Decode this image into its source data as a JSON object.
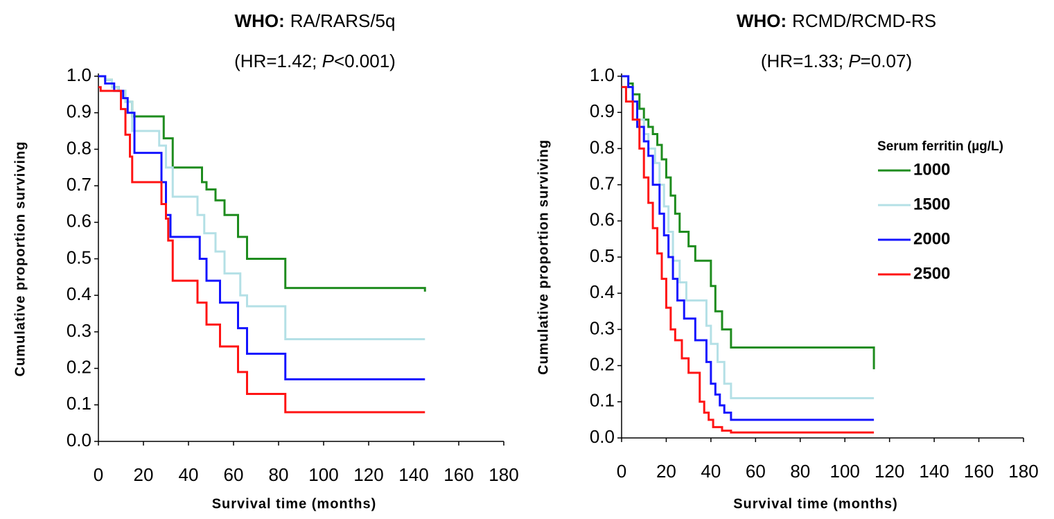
{
  "chart_data": [
    {
      "type": "line",
      "drawstyle": "steps-post",
      "title_label": "WHO:",
      "title": "RA/RARS/5q",
      "subtitle": [
        "(HR=1.42; ",
        "P",
        "<0.001)"
      ],
      "x_label": "Survival time (months)",
      "y_label": "Cumulative proportion surviving",
      "xlim": [
        0,
        180
      ],
      "xticks": [
        0,
        20,
        40,
        60,
        80,
        100,
        120,
        140,
        160,
        180
      ],
      "ylim": [
        0,
        1
      ],
      "yticks": [
        {
          "value": 0,
          "label": "0.0"
        },
        0.1,
        0.2,
        0.3,
        0.4,
        0.5,
        0.6,
        0.7,
        0.8,
        0.9,
        {
          "value": 1,
          "label": "1.0"
        }
      ],
      "grid": false,
      "legend": false,
      "series": [
        {
          "color": "#1e8c1e",
          "x": [
            0,
            3,
            6,
            9,
            12,
            15,
            29,
            33,
            46,
            48,
            52,
            56,
            62,
            66,
            83,
            145
          ],
          "values": [
            1.0,
            0.99,
            0.97,
            0.96,
            0.93,
            0.89,
            0.83,
            0.75,
            0.71,
            0.69,
            0.66,
            0.62,
            0.56,
            0.5,
            0.42,
            0.41
          ]
        },
        {
          "color": "#b4e0e6",
          "x": [
            0,
            3,
            6,
            9,
            12,
            15,
            27,
            30,
            33,
            44,
            47,
            52,
            56,
            63,
            66,
            83,
            145
          ],
          "values": [
            1.0,
            0.99,
            0.97,
            0.96,
            0.93,
            0.85,
            0.81,
            0.75,
            0.67,
            0.62,
            0.57,
            0.52,
            0.46,
            0.4,
            0.37,
            0.28,
            0.28
          ]
        },
        {
          "color": "#1414ff",
          "x": [
            0,
            3,
            7,
            11,
            13,
            16,
            28,
            30,
            32,
            45,
            48,
            54,
            62,
            66,
            83,
            145
          ],
          "values": [
            1.0,
            0.98,
            0.96,
            0.94,
            0.9,
            0.79,
            0.71,
            0.62,
            0.56,
            0.5,
            0.44,
            0.38,
            0.31,
            0.24,
            0.17,
            0.17
          ]
        },
        {
          "color": "#ff1414",
          "x": [
            0,
            1,
            10,
            12,
            14,
            15,
            28,
            30,
            31,
            33,
            44,
            48,
            54,
            62,
            66,
            83,
            145
          ],
          "values": [
            0.97,
            0.96,
            0.91,
            0.84,
            0.78,
            0.71,
            0.65,
            0.61,
            0.55,
            0.44,
            0.38,
            0.32,
            0.26,
            0.19,
            0.13,
            0.08,
            0.08
          ]
        }
      ]
    },
    {
      "type": "line",
      "drawstyle": "steps-post",
      "title_label": "WHO:",
      "title": "RCMD/RCMD-RS",
      "subtitle": [
        "(HR=1.33; ",
        "P",
        "=0.07)"
      ],
      "x_label": "Survival time (months)",
      "y_label": "Cumulative proportion surviving",
      "xlim": [
        0,
        180
      ],
      "xticks": [
        0,
        20,
        40,
        60,
        80,
        100,
        120,
        140,
        160,
        180
      ],
      "ylim": [
        0,
        1
      ],
      "yticks": [
        {
          "value": 0,
          "label": "0.0"
        },
        0.1,
        0.2,
        0.3,
        0.4,
        0.5,
        0.6,
        0.7,
        0.8,
        0.9,
        {
          "value": 1,
          "label": "1.0"
        }
      ],
      "grid": false,
      "legend": true,
      "legend_position": "right",
      "legend_title": "Serum ferritin (µg/L)",
      "series": [
        {
          "name": "1000",
          "color": "#1e8c1e",
          "x": [
            0,
            3,
            5,
            8,
            10,
            12,
            14,
            16,
            18,
            20,
            22,
            24,
            26,
            30,
            33,
            40,
            42,
            45,
            49,
            113
          ],
          "values": [
            1.0,
            0.98,
            0.95,
            0.91,
            0.88,
            0.86,
            0.84,
            0.81,
            0.77,
            0.72,
            0.67,
            0.62,
            0.57,
            0.53,
            0.49,
            0.42,
            0.35,
            0.3,
            0.25,
            0.19
          ]
        },
        {
          "name": "1500",
          "color": "#b4e0e6",
          "x": [
            0,
            3,
            5,
            7,
            10,
            12,
            15,
            17,
            19,
            21,
            23,
            26,
            29,
            38,
            40,
            43,
            46,
            49,
            113
          ],
          "values": [
            1.0,
            0.97,
            0.93,
            0.88,
            0.84,
            0.8,
            0.76,
            0.7,
            0.64,
            0.57,
            0.49,
            0.43,
            0.38,
            0.31,
            0.26,
            0.21,
            0.15,
            0.11,
            0.11
          ]
        },
        {
          "name": "2000",
          "color": "#1414ff",
          "x": [
            0,
            3,
            5,
            7,
            10,
            12,
            14,
            17,
            19,
            21,
            23,
            25,
            28,
            33,
            38,
            40,
            42,
            44,
            46,
            49,
            113
          ],
          "values": [
            1.0,
            0.97,
            0.93,
            0.86,
            0.82,
            0.78,
            0.7,
            0.62,
            0.56,
            0.5,
            0.44,
            0.38,
            0.33,
            0.27,
            0.21,
            0.15,
            0.12,
            0.09,
            0.07,
            0.05,
            0.05
          ]
        },
        {
          "name": "2500",
          "color": "#ff1414",
          "x": [
            0,
            2,
            5,
            8,
            10,
            12,
            14,
            16,
            18,
            20,
            22,
            24,
            27,
            30,
            35,
            37,
            39,
            41,
            45,
            49,
            113
          ],
          "values": [
            0.97,
            0.93,
            0.88,
            0.8,
            0.72,
            0.65,
            0.58,
            0.51,
            0.44,
            0.36,
            0.3,
            0.27,
            0.22,
            0.18,
            0.1,
            0.07,
            0.05,
            0.03,
            0.02,
            0.015,
            0.015
          ]
        }
      ]
    }
  ]
}
